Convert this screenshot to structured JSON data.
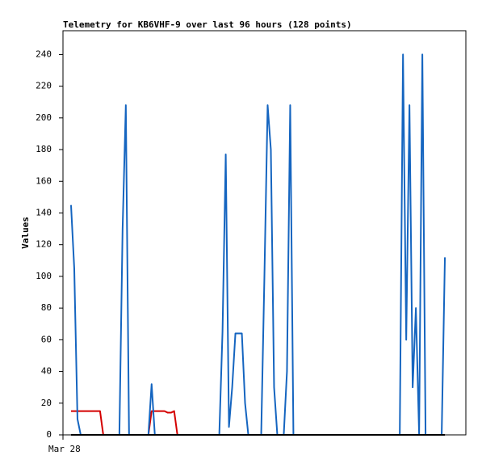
{
  "chart_data": {
    "type": "line",
    "title": "Telemetry for KB6VHF-9 over last 96 hours (128 points)",
    "y_label": "Values",
    "categories": [
      "Mar 28",
      null,
      null,
      null,
      null,
      null,
      null,
      null,
      null,
      null,
      null,
      null,
      null,
      null,
      null,
      null,
      null,
      null,
      null,
      null,
      null,
      null,
      null,
      null,
      null,
      null,
      null,
      null,
      null,
      null,
      null,
      null,
      null,
      null,
      null,
      null,
      null,
      null,
      null,
      null,
      null,
      null,
      null,
      null,
      null,
      null,
      null,
      null,
      null,
      null,
      null,
      null,
      null,
      null,
      null,
      null,
      null,
      null,
      null,
      null,
      null,
      null,
      null,
      null,
      null,
      null,
      null,
      null,
      null,
      null,
      null,
      null,
      null,
      null,
      null,
      null,
      null,
      null,
      null,
      null,
      null,
      null,
      null,
      null,
      null,
      null,
      null,
      null,
      null,
      null,
      null,
      null,
      null,
      null,
      null,
      null,
      null,
      null,
      null,
      null,
      null,
      null,
      null,
      null,
      null,
      null,
      null,
      null,
      null,
      null,
      null,
      null,
      null,
      null,
      null,
      null,
      null,
      null,
      null,
      null,
      null,
      null,
      null,
      null,
      null
    ],
    "series": [
      {
        "color": "#d40000",
        "values": [
          null,
          null,
          15,
          15,
          15,
          15,
          15,
          15,
          15,
          15,
          15,
          15,
          0,
          0,
          0,
          0,
          0,
          0,
          0,
          0,
          0,
          0,
          0,
          0,
          0,
          0,
          0,
          15,
          15,
          15,
          15,
          15,
          14,
          14,
          15,
          0,
          0,
          0,
          0,
          0,
          0,
          0,
          0,
          0,
          0,
          0,
          0,
          0,
          0,
          0,
          0,
          0,
          0,
          0,
          0,
          0,
          0,
          0,
          0,
          0,
          0,
          0,
          0,
          0,
          0,
          0,
          0,
          0,
          0,
          0,
          0,
          0,
          0,
          0,
          0,
          0,
          0,
          0,
          0,
          0,
          0,
          0,
          0,
          0,
          0,
          0,
          0,
          0,
          0,
          0,
          0,
          0,
          0,
          0,
          0,
          0,
          0,
          0,
          0,
          0,
          0,
          0,
          0,
          0,
          0,
          0,
          0,
          0,
          0,
          0,
          0,
          0,
          0,
          0,
          0,
          0,
          0,
          0,
          0,
          null,
          null,
          null,
          null,
          null,
          null
        ]
      },
      {
        "color": "#1565c0",
        "values": [
          null,
          null,
          145,
          105,
          10,
          0,
          0,
          0,
          0,
          0,
          0,
          0,
          0,
          0,
          0,
          0,
          0,
          0,
          130,
          208,
          0,
          0,
          0,
          0,
          0,
          0,
          0,
          32,
          0,
          0,
          0,
          0,
          0,
          0,
          0,
          0,
          0,
          0,
          0,
          0,
          0,
          0,
          0,
          0,
          0,
          0,
          0,
          0,
          0,
          65,
          177,
          5,
          30,
          64,
          64,
          64,
          20,
          0,
          0,
          0,
          0,
          0,
          100,
          208,
          180,
          30,
          0,
          0,
          0,
          40,
          208,
          0,
          0,
          0,
          0,
          0,
          0,
          0,
          0,
          0,
          0,
          0,
          0,
          0,
          0,
          0,
          0,
          0,
          0,
          0,
          0,
          0,
          0,
          0,
          0,
          0,
          0,
          0,
          0,
          0,
          0,
          0,
          0,
          0,
          0,
          240,
          60,
          208,
          30,
          80,
          0,
          240,
          0,
          0,
          0,
          0,
          0,
          0,
          112,
          null,
          null,
          null,
          null,
          null,
          null
        ]
      },
      {
        "color": "#000000",
        "values": [
          null,
          null,
          0,
          0,
          0,
          0,
          0,
          0,
          0,
          0,
          0,
          0,
          0,
          0,
          0,
          0,
          0,
          0,
          0,
          0,
          0,
          0,
          0,
          0,
          0,
          0,
          0,
          0,
          0,
          0,
          0,
          0,
          0,
          0,
          0,
          0,
          0,
          0,
          0,
          0,
          0,
          0,
          0,
          0,
          0,
          0,
          0,
          0,
          0,
          0,
          0,
          0,
          0,
          0,
          0,
          0,
          0,
          0,
          0,
          0,
          0,
          0,
          0,
          0,
          0,
          0,
          0,
          0,
          0,
          0,
          0,
          0,
          0,
          0,
          0,
          0,
          0,
          0,
          0,
          0,
          0,
          0,
          0,
          0,
          0,
          0,
          0,
          0,
          0,
          0,
          0,
          0,
          0,
          0,
          0,
          0,
          0,
          0,
          0,
          0,
          0,
          0,
          0,
          0,
          0,
          0,
          0,
          0,
          0,
          0,
          0,
          0,
          0,
          0,
          0,
          0,
          0,
          0,
          0,
          null,
          null,
          null,
          null,
          null,
          null
        ]
      }
    ],
    "ylim": [
      0,
      255
    ],
    "yticks": [
      0,
      20,
      40,
      60,
      80,
      100,
      120,
      140,
      160,
      180,
      200,
      220,
      240
    ]
  }
}
